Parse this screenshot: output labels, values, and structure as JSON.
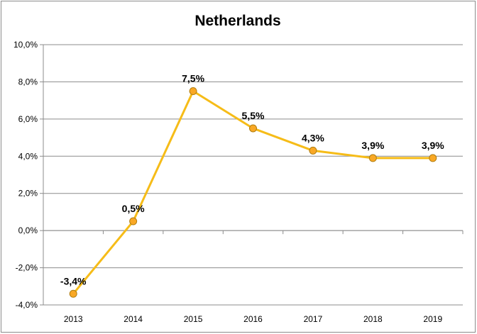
{
  "chart_data": {
    "type": "line",
    "title": "Netherlands",
    "xlabel": "",
    "ylabel": "",
    "categories": [
      "2013",
      "2014",
      "2015",
      "2016",
      "2017",
      "2018",
      "2019"
    ],
    "series": [
      {
        "values": [
          -3.4,
          0.5,
          7.5,
          5.5,
          4.3,
          3.9,
          3.9
        ],
        "data_labels": [
          "-3,4%",
          "0,5%",
          "7,5%",
          "5,5%",
          "4,3%",
          "3,9%",
          "3,9%"
        ],
        "color": "#f6bc18",
        "marker_color": "#f9a825"
      }
    ],
    "ylim": [
      -4,
      10
    ],
    "ytick_values": [
      -4,
      -2,
      0,
      2,
      4,
      6,
      8,
      10
    ],
    "ytick_labels": [
      "-4,0%",
      "-2,0%",
      "0,0%",
      "2,0%",
      "4,0%",
      "6,0%",
      "8,0%",
      "10,0%"
    ],
    "grid": true,
    "legend": "none"
  }
}
